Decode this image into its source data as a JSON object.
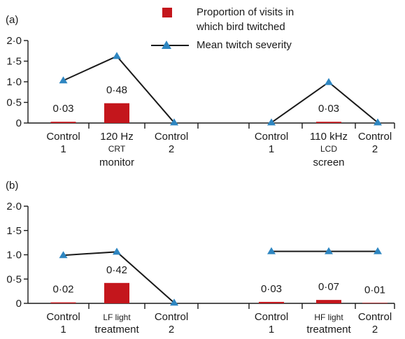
{
  "legend": {
    "bar_label_line1": "Proportion of visits in",
    "bar_label_line2": "which bird twitched",
    "line_label": "Mean twitch severity"
  },
  "colors": {
    "bar": "#c4161c",
    "marker": "#2e86c1",
    "line": "#1a1a1a"
  },
  "chart_data": [
    {
      "panel_label": "(a)",
      "type": "bar",
      "y_tick_labels": [
        "0",
        "0·5",
        "1·0",
        "1·5",
        "2·0"
      ],
      "ylim": [
        0,
        2.0
      ],
      "groups": [
        {
          "categories": [
            {
              "lines": [
                "Control",
                "1"
              ],
              "small_line": null
            },
            {
              "lines": [
                "120 Hz",
                "CRT",
                "monitor"
              ],
              "small_line": 1
            },
            {
              "lines": [
                "Control",
                "2"
              ],
              "small_line": null
            }
          ],
          "bar_values": [
            0.03,
            0.48,
            0.0
          ],
          "bar_value_labels": [
            "0·03",
            "0·48",
            ""
          ],
          "severity_values": [
            1.03,
            1.62,
            0.01
          ]
        },
        {
          "categories": [
            {
              "lines": [
                "Control",
                "1"
              ],
              "small_line": null
            },
            {
              "lines": [
                "110 kHz",
                "LCD",
                "screen"
              ],
              "small_line": 1
            },
            {
              "lines": [
                "Control",
                "2"
              ],
              "small_line": null
            }
          ],
          "bar_values": [
            0.0,
            0.03,
            0.0
          ],
          "bar_value_labels": [
            "",
            "0·03",
            ""
          ],
          "severity_values": [
            0.01,
            0.99,
            0.01
          ]
        }
      ],
      "series": [
        {
          "name": "Proportion of visits in which bird twitched",
          "kind": "bar"
        },
        {
          "name": "Mean twitch severity",
          "kind": "line"
        }
      ]
    },
    {
      "panel_label": "(b)",
      "type": "bar",
      "y_tick_labels": [
        "0",
        "0·5",
        "1·0",
        "1·5",
        "2·0"
      ],
      "ylim": [
        0,
        2.0
      ],
      "groups": [
        {
          "categories": [
            {
              "lines": [
                "Control",
                "1"
              ],
              "small_line": null
            },
            {
              "lines": [
                "LF light",
                "treatment"
              ],
              "small_line": 0
            },
            {
              "lines": [
                "Control",
                "2"
              ],
              "small_line": null
            }
          ],
          "bar_values": [
            0.02,
            0.42,
            0.0
          ],
          "bar_value_labels": [
            "0·02",
            "0·42",
            ""
          ],
          "severity_values": [
            0.99,
            1.06,
            0.01
          ]
        },
        {
          "categories": [
            {
              "lines": [
                "Control",
                "1"
              ],
              "small_line": null
            },
            {
              "lines": [
                "HF light",
                "treatment"
              ],
              "small_line": 0
            },
            {
              "lines": [
                "Control",
                "2"
              ],
              "small_line": null
            }
          ],
          "bar_values": [
            0.03,
            0.07,
            0.01
          ],
          "bar_value_labels": [
            "0·03",
            "0·07",
            "0·01"
          ],
          "severity_values": [
            1.07,
            1.07,
            1.07
          ]
        }
      ],
      "series": [
        {
          "name": "Proportion of visits in which bird twitched",
          "kind": "bar"
        },
        {
          "name": "Mean twitch severity",
          "kind": "line"
        }
      ]
    }
  ]
}
